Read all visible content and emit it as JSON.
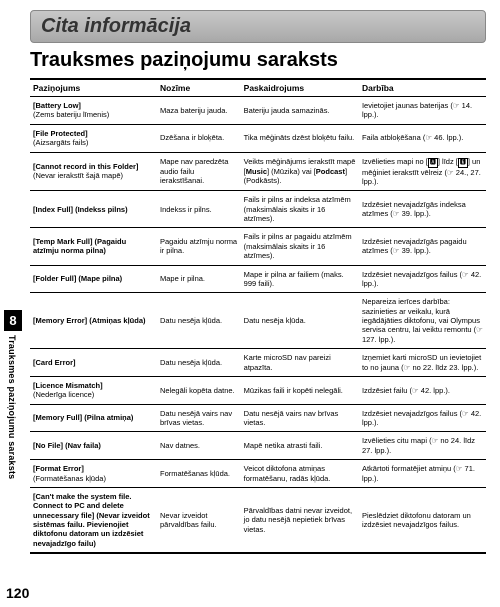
{
  "section_header": "Cita informācija",
  "main_title": "Trauksmes paziņojumu saraksts",
  "columns": [
    "Paziņojums",
    "Nozīme",
    "Paskaidrojums",
    "Darbība"
  ],
  "rows": [
    {
      "c1": "<b>[Battery Low]</b><br>(Zems bateriju līmenis)",
      "c2": "Maza bateriju jauda.",
      "c3": "Bateriju jauda samazinās.",
      "c4": "Ievietojiet jaunas baterijas (☞ 14. lpp.)."
    },
    {
      "c1": "<b>[File Protected]</b><br>(Aizsargāts fails)",
      "c2": "Dzēšana ir bloķēta.",
      "c3": "Tika mēģināts dzēst bloķētu failu.",
      "c4": "Faila atbloķēšana (☞ 46. lpp.)."
    },
    {
      "c1": "<b>[Cannot record in this Folder]</b><br>(Nevar ierakstīt šajā mapē)",
      "c2": "Mape nav paredzēta audio failu ierakstīšanai.",
      "c3": "Veikts mēģinājums ierakstīt mapē [<b>Music</b>] (Mūzika) vai [<b>Podcast</b>] (Podkāsts).",
      "c4": "Izvēlieties mapi no [<span class='small-icon'>🅰</span>] līdz [<span class='small-icon'>🅴</span>] un mēģiniet ierakstīt vēlreiz (☞ 24., 27. lpp.)."
    },
    {
      "c1": "<b>[Index Full] (Indekss pilns)</b>",
      "c2": "Indekss ir pilns.",
      "c3": "Fails ir pilns ar indeksa atzīmēm (maksimālais skaits ir 16 atzīmes).",
      "c4": "Izdzēsiet nevajadzīgās indeksa atzīmes (☞ 39. lpp.)."
    },
    {
      "c1": "<b>[Temp Mark Full] (Pagaidu atzīmju norma pilna)</b>",
      "c2": "Pagaidu atzīmju norma ir pilna.",
      "c3": "Fails ir pilns ar pagaidu atzīmēm (maksimālais skaits ir 16 atzīmes).",
      "c4": "Izdzēsiet nevajadzīgās pagaidu atzīmes (☞ 39. lpp.)."
    },
    {
      "c1": "<b>[Folder Full] (Mape pilna)</b>",
      "c2": "Mape ir pilna.",
      "c3": "Mape ir pilna ar failiem (maks. 999 faili).",
      "c4": "Izdzēsiet nevajadzīgos failus (☞ 42. lpp.)."
    },
    {
      "c1": "<b>[Memory Error] (Atmiņas kļūda)</b>",
      "c2": "Datu nesēja kļūda.",
      "c3": "Datu nesēja kļūda.",
      "c4": "Nepareiza ierīces darbība: sazinieties ar veikalu, kurā iegādājāties diktofonu, vai Olympus servisa centru, lai veiktu remontu (☞ 127. lpp.)."
    },
    {
      "c1": "<b>[Card Error]</b>",
      "c2": "Datu nesēja kļūda.",
      "c3": "Karte microSD nav pareizi atpazīta.",
      "c4": "Izņemiet karti microSD un ievietojiet to no jauna (☞ no 22. līdz 23. lpp.)."
    },
    {
      "c1": "<b>[Licence Mismatch]</b><br>(Nederīga licence)",
      "c2": "Nelegāli kopēta datne.",
      "c3": "Mūzikas faili ir kopēti nelegāli.",
      "c4": "Izdzēsiet failu (☞ 42. lpp.)."
    },
    {
      "c1": "<b>[Memory Full] (Pilna atmiņa)</b>",
      "c2": "Datu nesējā vairs nav brīvas vietas.",
      "c3": "Datu nesējā vairs nav brīvas vietas.",
      "c4": "Izdzēsiet nevajadzīgos failus (☞ 42. lpp.)."
    },
    {
      "c1": "<b>[No File] (Nav faila)</b>",
      "c2": "Nav datnes.",
      "c3": "Mapē netika atrasti faili.",
      "c4": "Izvēlieties citu mapi (☞ no 24. līdz 27. lpp.)."
    },
    {
      "c1": "<b>[Format Error]</b><br>(Formatēšanas kļūda)",
      "c2": "Formatēšanas kļūda.",
      "c3": "Veicot diktofona atmiņas formatēšanu, radās kļūda.",
      "c4": "Atkārtoti formatējiet atmiņu (☞ 71. lpp.)."
    },
    {
      "c1": "<b>[Can't make the system file. Connect to PC and delete unnecessary file] (Nevar izveidot sistēmas failu. Pievienojiet diktofonu datoram un izdzēsiet nevajadzīgo failu)</b>",
      "c2": "Nevar izveidot pārvaldības failu.",
      "c3": "Pārvaldības datni nevar izveidot, jo datu nesējā nepietiek brīvas vietas.",
      "c4": "Pieslēdziet diktofonu datoram un izdzēsiet nevajadzīgos failus."
    }
  ],
  "side": {
    "number": "8",
    "label": "Trauksmes paziņojumu saraksts"
  },
  "page_number": "120"
}
